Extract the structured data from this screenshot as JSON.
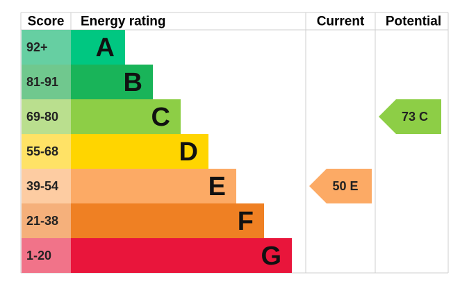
{
  "header": {
    "score": "Score",
    "rating": "Energy rating",
    "current": "Current",
    "potential": "Potential"
  },
  "bands": [
    {
      "score": "92+",
      "letter": "A",
      "color": "#00c781",
      "light": "#66cfa2"
    },
    {
      "score": "81-91",
      "letter": "B",
      "color": "#19b459",
      "light": "#70c88e"
    },
    {
      "score": "69-80",
      "letter": "C",
      "color": "#8dce46",
      "light": "#badf8e"
    },
    {
      "score": "55-68",
      "letter": "D",
      "color": "#ffd500",
      "light": "#ffe266"
    },
    {
      "score": "39-54",
      "letter": "E",
      "color": "#fcaa65",
      "light": "#fdcca2"
    },
    {
      "score": "21-38",
      "letter": "F",
      "color": "#ef8023",
      "light": "#f5b07b"
    },
    {
      "score": "1-20",
      "letter": "G",
      "color": "#e9153b",
      "light": "#f17389"
    }
  ],
  "current": {
    "score": "50",
    "rating": "E"
  },
  "potential": {
    "score": "73",
    "rating": "C"
  }
}
